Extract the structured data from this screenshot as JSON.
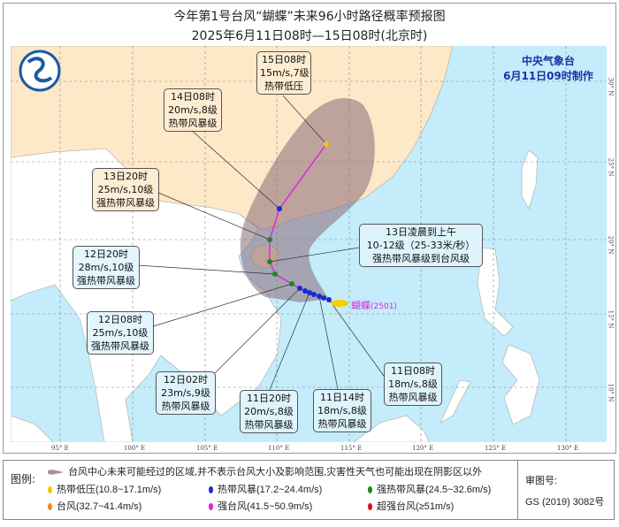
{
  "title": "今年第1号台风“蝴蝶”未来96小时路径概率预报图",
  "subtitle": "2025年6月11日08时—15日08时(北京时)",
  "issuer": {
    "name": "中央气象台",
    "issued": "6月11日09时制作"
  },
  "typhoon_name": "蝴蝶",
  "typhoon_code": "(2501)",
  "lon_ticks": [
    "95° E",
    "100° E",
    "105° E",
    "110° E",
    "115° E",
    "120° E",
    "125° E",
    "130° E"
  ],
  "lat_ticks": [
    "30° N",
    "25° N",
    "20° N",
    "15° N",
    "10° N"
  ],
  "colors": {
    "land_china": "#fde8c8",
    "land_other": "#ffffff",
    "ocean": "#c4ecfb",
    "track": "#e020e0",
    "cone": "#8a6a78"
  },
  "labels": {
    "p15_08": {
      "time": "15日08时",
      "wind": "15m/s,7级",
      "level": "热带低压"
    },
    "p14_08": {
      "time": "14日08时",
      "wind": "20m/s,8级",
      "level": "热带风暴级"
    },
    "p13_20": {
      "time": "13日20时",
      "wind": "25m/s,10级",
      "level": "强热带风暴级"
    },
    "p13_am": {
      "time": "13日凌晨到上午",
      "wind": "10-12级（25-33米/秒）",
      "level": "强热带风暴级到台风级"
    },
    "p12_20": {
      "time": "12日20时",
      "wind": "28m/s,10级",
      "level": "强热带风暴级"
    },
    "p12_08": {
      "time": "12日08时",
      "wind": "25m/s,10级",
      "level": "强热带风暴级"
    },
    "p12_02": {
      "time": "12日02时",
      "wind": "23m/s,9级",
      "level": "热带风暴级"
    },
    "p11_20": {
      "time": "11日20时",
      "wind": "20m/s,8级",
      "level": "热带风暴级"
    },
    "p11_14": {
      "time": "11日14时",
      "wind": "18m/s,8级",
      "level": "热带风暴级"
    },
    "p11_08": {
      "time": "11日08时",
      "wind": "18m/s,8级",
      "level": "热带风暴级"
    }
  },
  "legend": {
    "title": "图例:",
    "cone_desc": "台风中心未来可能经过的区域,并不表示台风大小及影响范围,灾害性天气也可能出现在阴影区以外",
    "items": [
      {
        "label": "热带低压(10.8~17.1m/s)",
        "color": "#f5c800"
      },
      {
        "label": "热带风暴(17.2~24.4m/s)",
        "color": "#1a2ad0"
      },
      {
        "label": "强热带风暴(24.5~32.6m/s)",
        "color": "#1a8a1a"
      },
      {
        "label": "台风(32.7~41.4m/s)",
        "color": "#f08a30"
      },
      {
        "label": "强台风(41.5~50.9m/s)",
        "color": "#e020e0"
      },
      {
        "label": "超强台风(≥51m/s)",
        "color": "#e01010"
      }
    ],
    "approval_label": "审图号:",
    "approval_no": "GS (2019) 3082号"
  }
}
